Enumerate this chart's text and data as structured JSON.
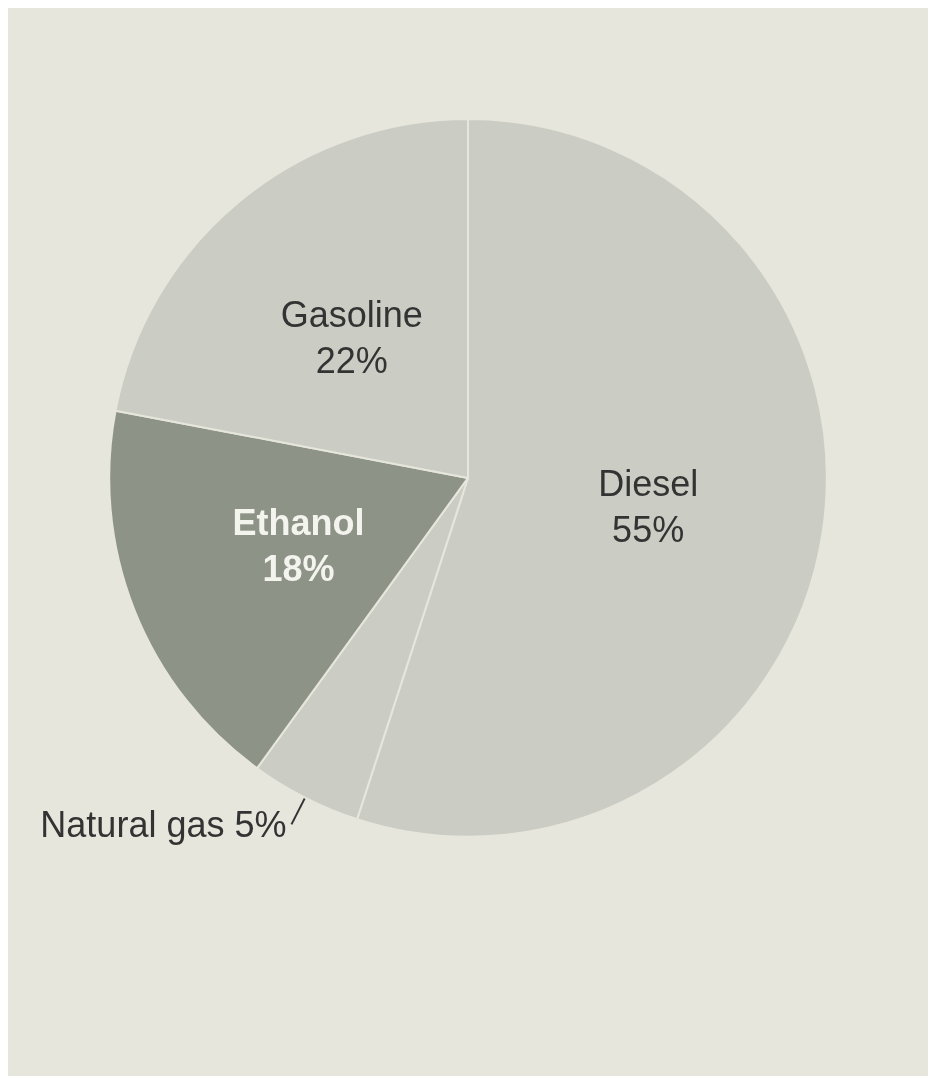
{
  "chart_data": {
    "type": "pie",
    "categories": [
      "Diesel",
      "Natural gas",
      "Ethanol",
      "Gasoline"
    ],
    "values": [
      55,
      5,
      18,
      22
    ],
    "colors": [
      "#cbccc3",
      "#cbccc3",
      "#8e9387",
      "#cbccc3"
    ],
    "value_labels": [
      "55%",
      "5%",
      "18%",
      "22%"
    ]
  }
}
